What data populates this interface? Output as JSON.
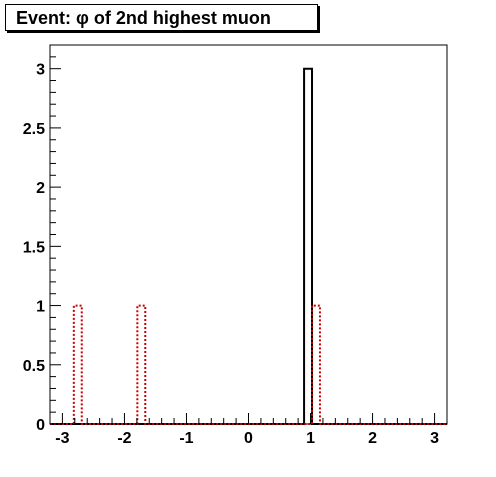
{
  "title": "Event: φ of 2nd highest muon",
  "chart_data": {
    "type": "bar",
    "title": "Event: φ of 2nd highest muon",
    "xlabel": "",
    "ylabel": "",
    "xlim": [
      -3.2,
      3.2
    ],
    "ylim": [
      0,
      3.2
    ],
    "x_ticks": [
      -3,
      -2,
      -1,
      0,
      1,
      2,
      3
    ],
    "y_ticks": [
      0,
      0.5,
      1,
      1.5,
      2,
      2.5,
      3
    ],
    "grid": false,
    "legend": "none",
    "bin_width": 0.128,
    "series": [
      {
        "style": "solid",
        "color": "#000000",
        "bins": [
          {
            "x_low": 0.896,
            "x_high": 1.024,
            "value": 3
          }
        ]
      },
      {
        "style": "dotted",
        "color": "#cc0000",
        "bins": [
          {
            "x_low": -2.816,
            "x_high": -2.688,
            "value": 1
          },
          {
            "x_low": -1.792,
            "x_high": -1.664,
            "value": 1
          },
          {
            "x_low": 1.024,
            "x_high": 1.152,
            "value": 1
          }
        ]
      }
    ]
  }
}
